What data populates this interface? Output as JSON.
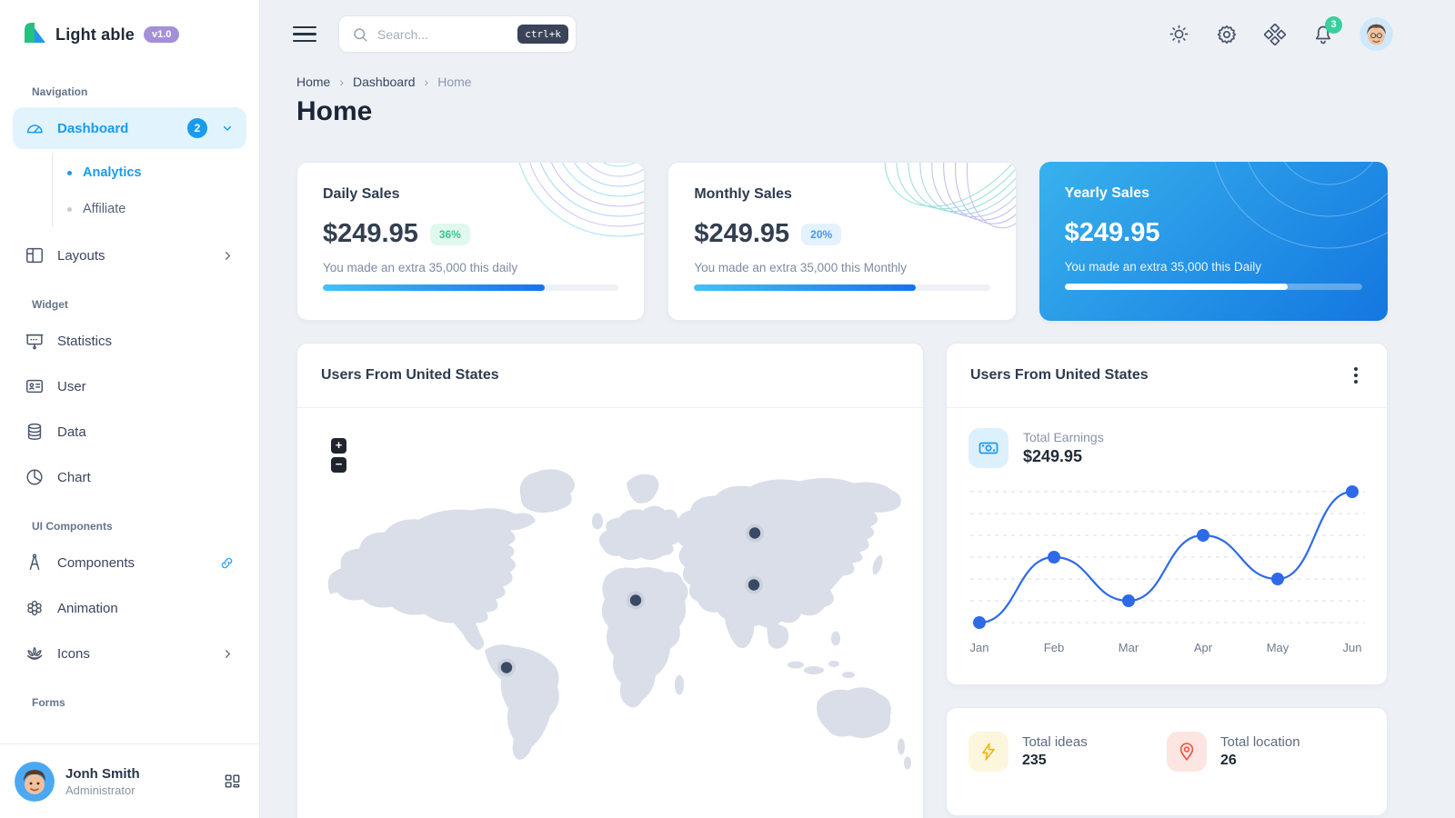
{
  "app": {
    "brand": "Light able",
    "version_badge": "v1.0"
  },
  "sidebar": {
    "sections": [
      {
        "label": "Navigation"
      },
      {
        "label": "Widget"
      },
      {
        "label": "UI Components"
      },
      {
        "label": "Forms"
      }
    ],
    "items": {
      "dashboard": {
        "label": "Dashboard",
        "badge": "2",
        "icon": "gauge-icon"
      },
      "analytics": {
        "label": "Analytics"
      },
      "affiliate": {
        "label": "Affiliate"
      },
      "layouts": {
        "label": "Layouts",
        "icon": "layout-icon"
      },
      "statistics": {
        "label": "Statistics",
        "icon": "presentation-icon"
      },
      "user": {
        "label": "User",
        "icon": "id-card-icon"
      },
      "data": {
        "label": "Data",
        "icon": "database-icon"
      },
      "chart": {
        "label": "Chart",
        "icon": "pie-chart-icon"
      },
      "components": {
        "label": "Components",
        "icon": "compass-icon"
      },
      "animation": {
        "label": "Animation",
        "icon": "flower-icon"
      },
      "icons": {
        "label": "Icons",
        "icon": "lotus-icon"
      }
    },
    "user": {
      "name": "Jonh Smith",
      "role": "Administrator"
    }
  },
  "header": {
    "search_placeholder": "Search...",
    "search_shortcut": "ctrl+k",
    "icons": [
      "sun-icon",
      "gear-icon",
      "diamond-grid-icon",
      "bell-icon"
    ],
    "notification_count": "3"
  },
  "breadcrumb": {
    "items": [
      "Home",
      "Dashboard",
      "Home"
    ]
  },
  "page_title": "Home",
  "stat_cards": [
    {
      "title": "Daily Sales",
      "amount": "$249.95",
      "badge": "36%",
      "note": "You made an extra 35,000 this daily",
      "progress": 75
    },
    {
      "title": "Monthly Sales",
      "amount": "$249.95",
      "badge": "20%",
      "note": "You made an extra 35,000 this Monthly",
      "progress": 75
    },
    {
      "title": "Yearly Sales",
      "amount": "$249.95",
      "note": "You made an extra 35,000 this Daily",
      "progress": 75
    }
  ],
  "map_card": {
    "title": "Users From United States",
    "zoom_in": "+",
    "zoom_out": "−",
    "markers": [
      {
        "x": 503,
        "y": 133
      },
      {
        "x": 502,
        "y": 190
      },
      {
        "x": 372,
        "y": 207
      },
      {
        "x": 230,
        "y": 281
      }
    ]
  },
  "earnings_card": {
    "title": "Users From United States",
    "stat_label": "Total Earnings",
    "stat_value": "$249.95",
    "chart_data": {
      "type": "line",
      "x": [
        "Jan",
        "Feb",
        "Mar",
        "Apr",
        "May",
        "Jun"
      ],
      "values": [
        0,
        30,
        10,
        40,
        20,
        60
      ],
      "ylim": [
        0,
        60
      ],
      "gridlines": 7,
      "grid_style": "dashed",
      "line_color": "#2e6ae8",
      "legend": "none"
    }
  },
  "totals_card": {
    "items": [
      {
        "label": "Total ideas",
        "value": "235",
        "icon": "lightning-icon"
      },
      {
        "label": "Total location",
        "value": "26",
        "icon": "map-pin-icon"
      }
    ]
  },
  "colors": {
    "primary": "#199bf0",
    "chart_blue": "#2e6ae8",
    "success": "#3bcf9e",
    "version_badge_bg": "#a48fd9",
    "yearly_gradient": [
      "#38b1ec",
      "#1377e0"
    ]
  }
}
